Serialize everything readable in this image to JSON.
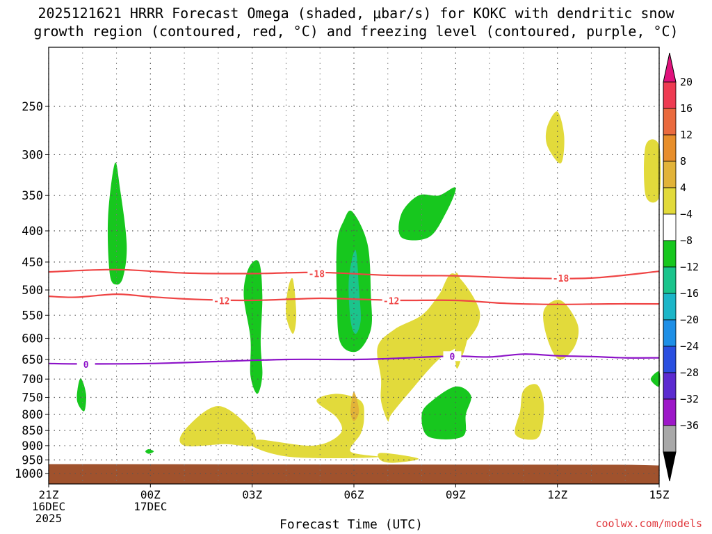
{
  "title_line1": "2025121621 HRRR Forecast Omega (shaded, μbar/s) for KOKC with dendritic snow",
  "title_line2": "growth region (contoured, red, °C) and freezing level (contoured, purple, °C)",
  "footer": "coolwx.com/models",
  "chart_data": {
    "type": "time-height cross section (filled contour)",
    "title": "2025121621 HRRR Forecast Omega (shaded, μbar/s) for KOKC with dendritic snow growth region (contoured, red, °C) and freezing level (contoured, purple, °C)",
    "xlabel": "Forecast Time (UTC)",
    "ylabel": "",
    "x_range_hours": [
      0,
      18
    ],
    "y_range_hpa": [
      1040,
      200
    ],
    "y_ticks": [
      250,
      300,
      350,
      400,
      450,
      500,
      550,
      600,
      650,
      700,
      750,
      800,
      850,
      900,
      950,
      1000
    ],
    "x_ticks": [
      {
        "h": 0,
        "lines": [
          "21Z",
          "16DEC",
          "2025"
        ]
      },
      {
        "h": 3,
        "lines": [
          "00Z",
          "17DEC"
        ]
      },
      {
        "h": 6,
        "lines": [
          "03Z"
        ]
      },
      {
        "h": 9,
        "lines": [
          "06Z"
        ]
      },
      {
        "h": 12,
        "lines": [
          "09Z"
        ]
      },
      {
        "h": 15,
        "lines": [
          "12Z"
        ]
      },
      {
        "h": 18,
        "lines": [
          "15Z"
        ]
      }
    ],
    "colorbar": {
      "labels": [
        "20",
        "16",
        "12",
        "8",
        "4",
        "−4",
        "−8",
        "−12",
        "−16",
        "−20",
        "−24",
        "−28",
        "−32",
        "−36"
      ],
      "colors": [
        "#ee3b52",
        "#ea6a3e",
        "#e78e2b",
        "#e2b338",
        "#e2da3b",
        "#ffffff",
        "#17c71e",
        "#1bc48c",
        "#1cb6c8",
        "#1e8fe6",
        "#2a4fe0",
        "#5c2bd0",
        "#9d18c8",
        "#a8a8a8"
      ],
      "top_arrow_color": "#e0127c",
      "bottom_arrow_color": "#000000"
    },
    "contours": [
      {
        "label": "-18",
        "color": "#ef4545",
        "points_h_hpa": [
          [
            0,
            467
          ],
          [
            2,
            463
          ],
          [
            4,
            469
          ],
          [
            6,
            470
          ],
          [
            8,
            468
          ],
          [
            10,
            473
          ],
          [
            12,
            474
          ],
          [
            14,
            478
          ],
          [
            16,
            478
          ],
          [
            18,
            466
          ]
        ],
        "label_at": [
          [
            7.9,
            470
          ],
          [
            15.1,
            478
          ]
        ]
      },
      {
        "label": "-12",
        "color": "#ef4545",
        "points_h_hpa": [
          [
            0,
            512
          ],
          [
            0.8,
            514
          ],
          [
            2,
            508
          ],
          [
            3,
            513
          ],
          [
            4.3,
            518
          ],
          [
            6,
            520
          ],
          [
            8,
            516
          ],
          [
            9.2,
            518
          ],
          [
            10.4,
            520
          ],
          [
            12,
            520
          ],
          [
            13.5,
            526
          ],
          [
            15,
            528
          ],
          [
            16.5,
            527
          ],
          [
            18,
            527
          ]
        ],
        "label_at": [
          [
            5.1,
            521
          ],
          [
            10.1,
            521
          ]
        ]
      },
      {
        "label": "0",
        "color": "#8c12c8",
        "points_h_hpa": [
          [
            0,
            660
          ],
          [
            1,
            661
          ],
          [
            3,
            660
          ],
          [
            5,
            655
          ],
          [
            7,
            650
          ],
          [
            9,
            650
          ],
          [
            10,
            648
          ],
          [
            11.9,
            642
          ],
          [
            13,
            644
          ],
          [
            14,
            637
          ],
          [
            15,
            641
          ],
          [
            16,
            643
          ],
          [
            17,
            646
          ],
          [
            18,
            646
          ]
        ],
        "label_at": [
          [
            1.1,
            662
          ],
          [
            11.9,
            642
          ]
        ]
      }
    ],
    "shaded_regions": [
      {
        "value": -8,
        "color": "#17c71e",
        "points_h_hpa": [
          [
            1.95,
            310
          ],
          [
            2.1,
            340
          ],
          [
            2.3,
            420
          ],
          [
            2.2,
            475
          ],
          [
            2.0,
            490
          ],
          [
            1.8,
            470
          ],
          [
            1.75,
            380
          ]
        ]
      },
      {
        "value": -8,
        "color": "#17c71e",
        "points_h_hpa": [
          [
            0.95,
            698
          ],
          [
            1.1,
            740
          ],
          [
            1.05,
            790
          ],
          [
            0.85,
            765
          ],
          [
            0.85,
            728
          ]
        ]
      },
      {
        "value": -8,
        "color": "#17c71e",
        "points_h_hpa": [
          [
            2.95,
            912
          ],
          [
            3.1,
            920
          ],
          [
            2.95,
            928
          ],
          [
            2.85,
            920
          ]
        ]
      },
      {
        "value": -8,
        "color": "#17c71e",
        "points_h_hpa": [
          [
            6.2,
            450
          ],
          [
            6.3,
            510
          ],
          [
            6.25,
            610
          ],
          [
            6.3,
            690
          ],
          [
            6.15,
            740
          ],
          [
            5.95,
            690
          ],
          [
            5.95,
            600
          ],
          [
            5.75,
            510
          ],
          [
            5.9,
            460
          ]
        ]
      },
      {
        "value": -8,
        "color": "#17c71e",
        "points_h_hpa": [
          [
            8.95,
            372
          ],
          [
            9.4,
            420
          ],
          [
            9.5,
            510
          ],
          [
            9.5,
            580
          ],
          [
            9.1,
            630
          ],
          [
            8.6,
            610
          ],
          [
            8.5,
            520
          ],
          [
            8.5,
            420
          ],
          [
            8.7,
            385
          ]
        ]
      },
      {
        "value": -12,
        "color": "#1bc48c",
        "points_h_hpa": [
          [
            9.05,
            430
          ],
          [
            9.15,
            500
          ],
          [
            9.2,
            560
          ],
          [
            9.05,
            590
          ],
          [
            8.9,
            560
          ],
          [
            8.85,
            480
          ]
        ]
      },
      {
        "value": -8,
        "color": "#17c71e",
        "points_h_hpa": [
          [
            11.5,
            350
          ],
          [
            12,
            340
          ],
          [
            11.7,
            375
          ],
          [
            11.2,
            410
          ],
          [
            10.4,
            410
          ],
          [
            10.4,
            375
          ],
          [
            10.9,
            350
          ]
        ]
      },
      {
        "value": -8,
        "color": "#17c71e",
        "points_h_hpa": [
          [
            12,
            720
          ],
          [
            12.45,
            745
          ],
          [
            12.3,
            800
          ],
          [
            12.2,
            870
          ],
          [
            11.2,
            870
          ],
          [
            11.0,
            800
          ],
          [
            11.3,
            760
          ]
        ]
      },
      {
        "value": -8,
        "color": "#17c71e",
        "points_h_hpa": [
          [
            18,
            680
          ],
          [
            18,
            720
          ],
          [
            17.75,
            700
          ]
        ]
      },
      {
        "value": 4,
        "color": "#e2da3b",
        "points_h_hpa": [
          [
            11.95,
            470
          ],
          [
            12.7,
            540
          ],
          [
            12.4,
            600
          ],
          [
            11.5,
            650
          ],
          [
            10.6,
            740
          ],
          [
            10.1,
            800
          ],
          [
            10.0,
            820
          ],
          [
            9.8,
            760
          ],
          [
            9.8,
            700
          ],
          [
            9.7,
            620
          ],
          [
            10.2,
            580
          ],
          [
            11.0,
            550
          ],
          [
            11.5,
            510
          ]
        ]
      },
      {
        "value": 4,
        "color": "#e2da3b",
        "points_h_hpa": [
          [
            15.1,
            520
          ],
          [
            15.6,
            570
          ],
          [
            15.5,
            620
          ],
          [
            15.05,
            650
          ],
          [
            14.7,
            600
          ],
          [
            14.6,
            540
          ]
        ]
      },
      {
        "value": 4,
        "color": "#e2da3b",
        "points_h_hpa": [
          [
            15,
            255
          ],
          [
            15.2,
            280
          ],
          [
            15.1,
            310
          ],
          [
            14.7,
            290
          ],
          [
            14.7,
            270
          ]
        ]
      },
      {
        "value": 4,
        "color": "#e2da3b",
        "points_h_hpa": [
          [
            17.6,
            290
          ],
          [
            18,
            290
          ],
          [
            18,
            352
          ],
          [
            17.6,
            350
          ]
        ]
      },
      {
        "value": 4,
        "color": "#e2da3b",
        "points_h_hpa": [
          [
            14.4,
            715
          ],
          [
            14.6,
            770
          ],
          [
            14.5,
            860
          ],
          [
            14.2,
            880
          ],
          [
            13.75,
            860
          ],
          [
            13.9,
            790
          ],
          [
            14.0,
            730
          ]
        ]
      },
      {
        "value": 4,
        "color": "#e2da3b",
        "points_h_hpa": [
          [
            7.2,
            480
          ],
          [
            7.3,
            550
          ],
          [
            7.2,
            590
          ],
          [
            7.0,
            550
          ],
          [
            7.05,
            500
          ]
        ]
      },
      {
        "value": 4,
        "color": "#e2da3b",
        "points_h_hpa": [
          [
            5.0,
            775
          ],
          [
            6.0,
            850
          ],
          [
            6.0,
            900
          ],
          [
            5.2,
            895
          ],
          [
            4.0,
            900
          ],
          [
            4.0,
            850
          ]
        ]
      },
      {
        "value": 4,
        "color": "#e2da3b",
        "points_h_hpa": [
          [
            8.5,
            740
          ],
          [
            9.2,
            760
          ],
          [
            9.3,
            810
          ],
          [
            9.2,
            860
          ],
          [
            8.9,
            920
          ],
          [
            9.7,
            940
          ],
          [
            7.2,
            940
          ],
          [
            6.0,
            902
          ],
          [
            6.2,
            880
          ],
          [
            7.8,
            900
          ],
          [
            8.6,
            860
          ],
          [
            8.5,
            810
          ],
          [
            7.9,
            760
          ]
        ]
      },
      {
        "value": 8,
        "color": "#e2b338",
        "points_h_hpa": [
          [
            9.0,
            735
          ],
          [
            9.15,
            790
          ],
          [
            9.0,
            820
          ],
          [
            8.9,
            790
          ]
        ]
      },
      {
        "value": 4,
        "color": "#e2da3b",
        "points_h_hpa": [
          [
            9.8,
            925
          ],
          [
            10.9,
            945
          ],
          [
            10.2,
            960
          ],
          [
            9.8,
            952
          ]
        ]
      },
      {
        "value": 4,
        "color": "#e2da3b",
        "points_h_hpa": [
          [
            12,
            470
          ],
          [
            12.45,
            555
          ],
          [
            12.35,
            600
          ],
          [
            12.2,
            640
          ],
          [
            12,
            660
          ]
        ]
      }
    ],
    "terrain": {
      "color": "#a0522d",
      "surface_hpa_left": 965,
      "surface_hpa_right": 970
    }
  }
}
